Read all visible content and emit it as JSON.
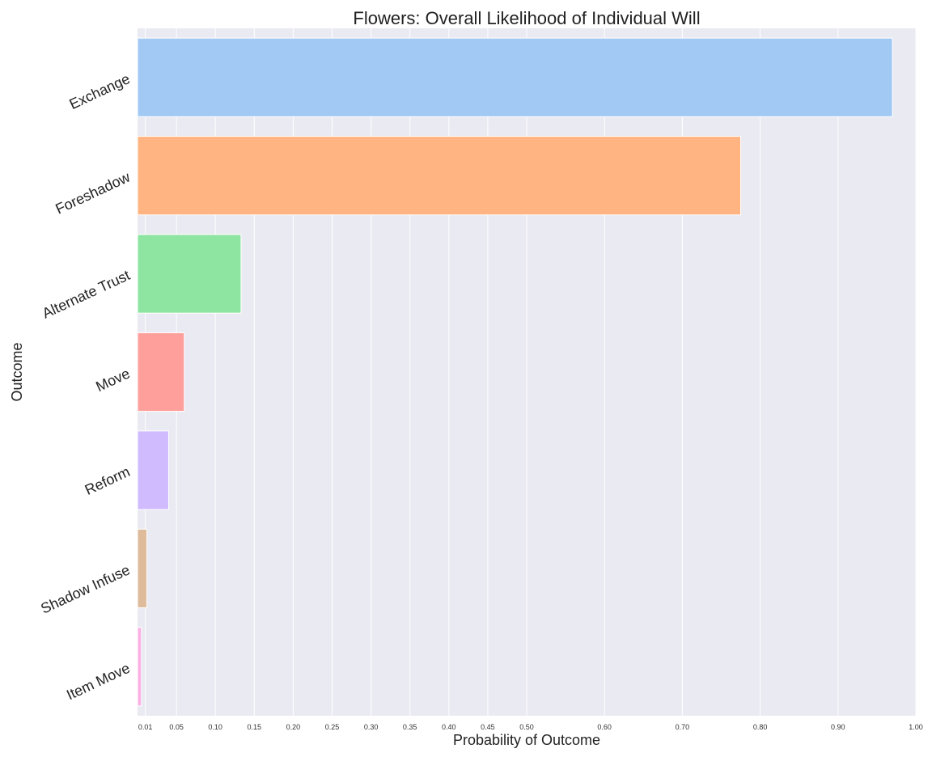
{
  "chart_data": {
    "type": "bar",
    "orientation": "horizontal",
    "title": "Flowers: Overall Likelihood of Individual Will",
    "xlabel": "Probability of Outcome",
    "ylabel": "Outcome",
    "categories": [
      "Exchange",
      "Foreshadow",
      "Alternate Trust",
      "Move",
      "Reform",
      "Shadow Infuse",
      "Item Move"
    ],
    "values": [
      0.97,
      0.775,
      0.133,
      0.06,
      0.04,
      0.012,
      0.005
    ],
    "colors": [
      "#a1c9f4",
      "#ffb482",
      "#8de5a1",
      "#ff9f9b",
      "#d0bbff",
      "#debb9b",
      "#fab0e4"
    ],
    "xlim": [
      0,
      1.0
    ],
    "xticks": [
      {
        "value": 0.01,
        "label": "0.01"
      },
      {
        "value": 0.05,
        "label": "0.05"
      },
      {
        "value": 0.1,
        "label": "0.10"
      },
      {
        "value": 0.15,
        "label": "0.15"
      },
      {
        "value": 0.2,
        "label": "0.20"
      },
      {
        "value": 0.25,
        "label": "0.25"
      },
      {
        "value": 0.3,
        "label": "0.30"
      },
      {
        "value": 0.35,
        "label": "0.35"
      },
      {
        "value": 0.4,
        "label": "0.40"
      },
      {
        "value": 0.45,
        "label": "0.45"
      },
      {
        "value": 0.5,
        "label": "0.50"
      },
      {
        "value": 0.6,
        "label": "0.60"
      },
      {
        "value": 0.7,
        "label": "0.70"
      },
      {
        "value": 0.8,
        "label": "0.80"
      },
      {
        "value": 0.9,
        "label": "0.90"
      },
      {
        "value": 1.0,
        "label": "1.00"
      }
    ],
    "grid": true,
    "background": "#eaeaf2"
  }
}
